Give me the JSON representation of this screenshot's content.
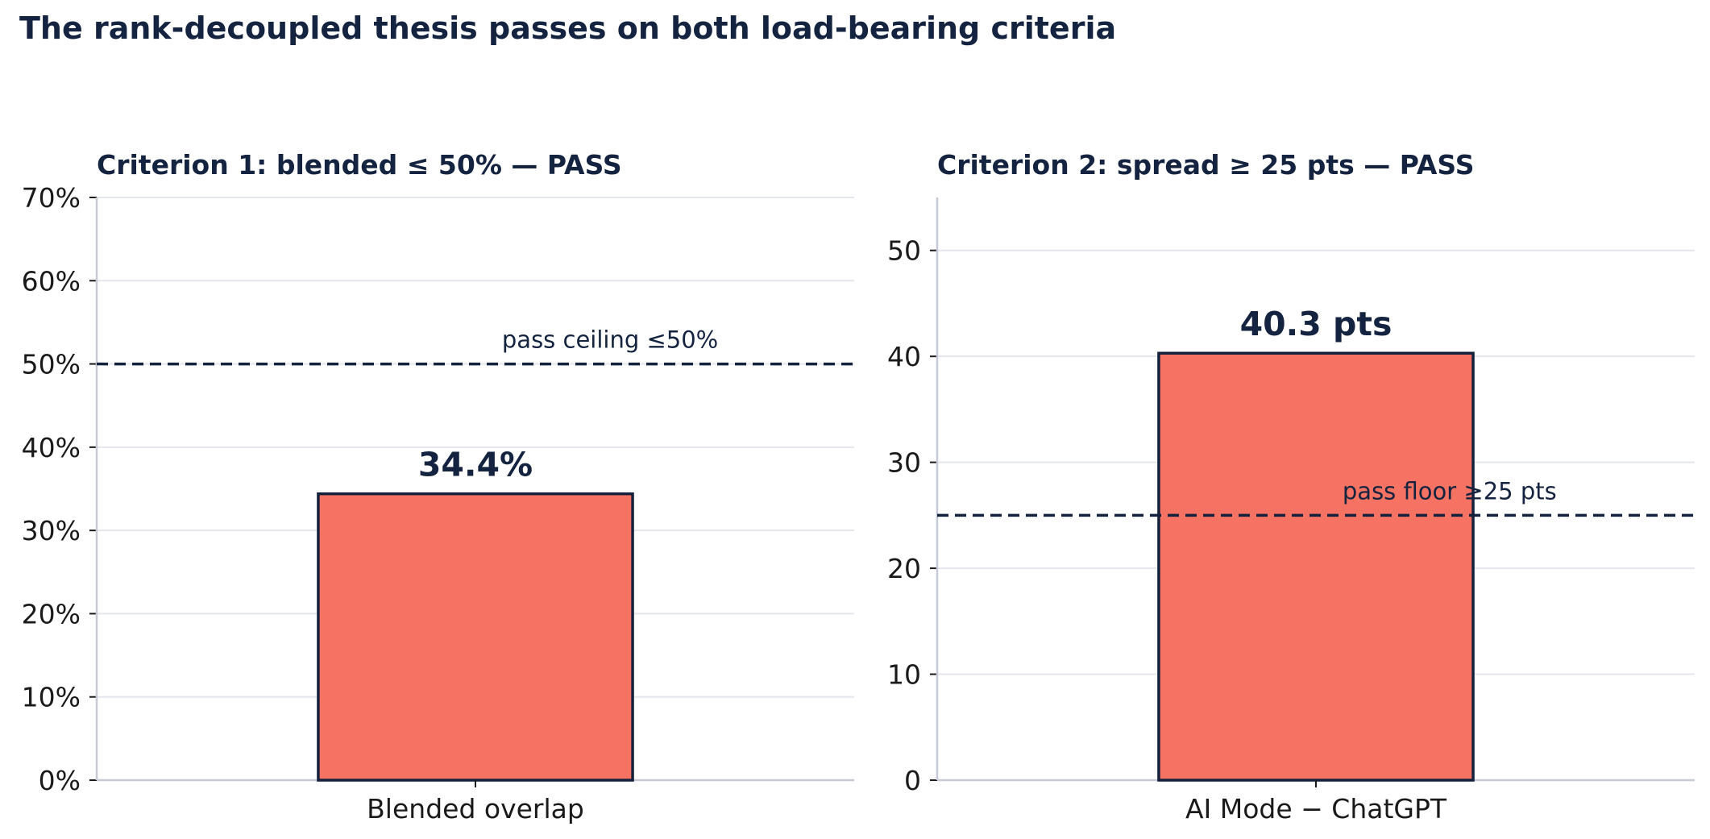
{
  "title": "The rank-decoupled thesis passes on both load-bearing criteria",
  "colors": {
    "title": "#14233f",
    "bar_fill": "#f67262",
    "bar_edge": "#14213d",
    "grid": "#e4e6ee",
    "spine": "#c6c9d6",
    "ref_line": "#14213d",
    "tick_text": "#1a1a1a"
  },
  "chart_data": [
    {
      "type": "bar",
      "title": "Criterion 1: blended ≤ 50%  — PASS",
      "categories": [
        "Blended overlap"
      ],
      "values": [
        34.4
      ],
      "value_labels": [
        "34.4%"
      ],
      "ylim": [
        0,
        70
      ],
      "yticks": [
        0,
        10,
        20,
        30,
        40,
        50,
        60,
        70
      ],
      "ytick_labels": [
        "0%",
        "10%",
        "20%",
        "30%",
        "40%",
        "50%",
        "60%",
        "70%"
      ],
      "reference_line": {
        "value": 50,
        "label": "pass ceiling  ≤50%"
      },
      "grid": true,
      "xlabel": "",
      "ylabel": ""
    },
    {
      "type": "bar",
      "title": "Criterion 2: spread ≥ 25 pts  — PASS",
      "categories": [
        "AI Mode − ChatGPT"
      ],
      "values": [
        40.3
      ],
      "value_labels": [
        "40.3 pts"
      ],
      "ylim": [
        0,
        55
      ],
      "yticks": [
        0,
        10,
        20,
        30,
        40,
        50
      ],
      "ytick_labels": [
        "0",
        "10",
        "20",
        "30",
        "40",
        "50"
      ],
      "reference_line": {
        "value": 25,
        "label": "pass floor  ≥25 pts"
      },
      "grid": true,
      "xlabel": "",
      "ylabel": ""
    }
  ]
}
